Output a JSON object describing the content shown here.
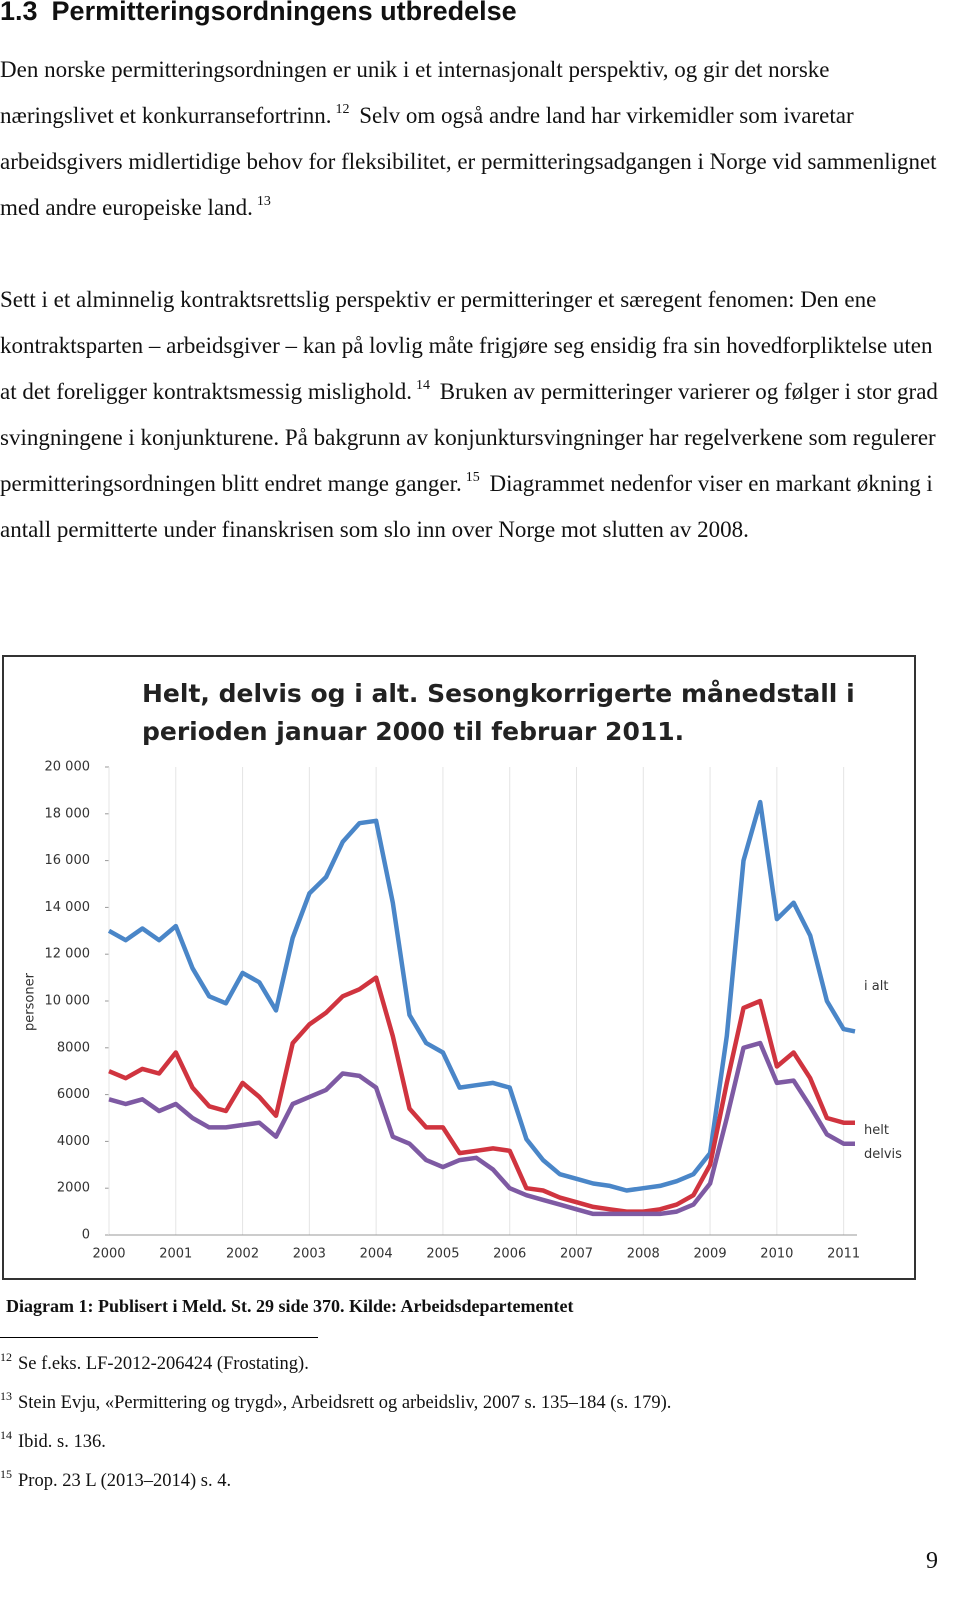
{
  "heading": {
    "number": "1.3",
    "title": "Permitteringsordningens utbredelse"
  },
  "paragraphs": [
    [
      {
        "text": "Den norske permitteringsordningen er unik i et internasjonalt perspektiv, og gir det norske næringslivet et konkurransefortrinn."
      },
      {
        "sup": "12"
      },
      {
        "text": " Selv om også andre land har virkemidler som ivaretar arbeidsgivers midlertidige behov for fleksibilitet, er permitteringsadgangen i Norge vid sammenlignet med andre europeiske land."
      },
      {
        "sup": "13"
      }
    ],
    [
      {
        "text": "Sett i et alminnelig kontraktsrettslig perspektiv er permitteringer et særegent fenomen: Den ene kontraktsparten – arbeidsgiver – kan på lovlig måte frigjøre seg ensidig fra sin hovedforpliktelse uten at det foreligger kontraktsmessig mislighold."
      },
      {
        "sup": "14"
      },
      {
        "text": " Bruken av permitteringer varierer og følger i stor grad svingningene i konjunkturene. På bakgrunn av konjunktursvingninger har regelverkene som regulerer permitteringsordningen blitt endret mange ganger."
      },
      {
        "sup": "15"
      },
      {
        "text": " Diagrammet nedenfor viser en markant økning i antall permitterte under finanskrisen som slo inn over Norge mot slutten av 2008."
      }
    ]
  ],
  "chart_data": {
    "type": "line",
    "title": "Helt, delvis og i alt. Sesongkorrigerte månedstall i perioden januar 2000 til februar 2011.",
    "y_label": "personer",
    "x": [
      2000,
      2000.25,
      2000.5,
      2000.75,
      2001,
      2001.25,
      2001.5,
      2001.75,
      2002,
      2002.25,
      2002.5,
      2002.75,
      2003,
      2003.25,
      2003.5,
      2003.75,
      2004,
      2004.25,
      2004.5,
      2004.75,
      2005,
      2005.25,
      2005.5,
      2005.75,
      2006,
      2006.25,
      2006.5,
      2006.75,
      2007,
      2007.25,
      2007.5,
      2007.75,
      2008,
      2008.25,
      2008.5,
      2008.75,
      2009,
      2009.25,
      2009.5,
      2009.75,
      2010,
      2010.25,
      2010.5,
      2010.75,
      2011,
      2011.17
    ],
    "series": [
      {
        "name": "i alt",
        "color": "#4a86c8",
        "values": [
          13000,
          12600,
          13100,
          12600,
          13200,
          11400,
          10200,
          9900,
          11200,
          10800,
          9600,
          12700,
          14600,
          15300,
          16800,
          17600,
          17700,
          14200,
          9400,
          8200,
          7800,
          6300,
          6400,
          6500,
          6300,
          4100,
          3200,
          2600,
          2400,
          2200,
          2100,
          1900,
          2000,
          2100,
          2300,
          2600,
          3500,
          8500,
          16000,
          18500,
          13500,
          14200,
          12800,
          10000,
          8800,
          8700
        ]
      },
      {
        "name": "helt",
        "color": "#d0343f",
        "values": [
          7000,
          6700,
          7100,
          6900,
          7800,
          6300,
          5500,
          5300,
          6500,
          5900,
          5100,
          8200,
          9000,
          9500,
          10200,
          10500,
          11000,
          8500,
          5400,
          4600,
          4600,
          3500,
          3600,
          3700,
          3600,
          2000,
          1900,
          1600,
          1400,
          1200,
          1100,
          1000,
          1000,
          1100,
          1300,
          1700,
          3000,
          6500,
          9700,
          10000,
          7200,
          7800,
          6700,
          5000,
          4800,
          4800
        ]
      },
      {
        "name": "delvis",
        "color": "#7e5aa3",
        "values": [
          5800,
          5600,
          5800,
          5300,
          5600,
          5000,
          4600,
          4600,
          4700,
          4800,
          4200,
          5600,
          5900,
          6200,
          6900,
          6800,
          6300,
          4200,
          3900,
          3200,
          2900,
          3200,
          3300,
          2800,
          2000,
          1700,
          1500,
          1300,
          1100,
          900,
          900,
          900,
          900,
          900,
          1000,
          1300,
          2200,
          5000,
          8000,
          8200,
          6500,
          6600,
          5500,
          4300,
          3900,
          3900
        ]
      }
    ],
    "xlim": [
      2000,
      2011.2
    ],
    "xticks": [
      2000,
      2001,
      2002,
      2003,
      2004,
      2005,
      2006,
      2007,
      2008,
      2009,
      2010,
      2011
    ],
    "ylim": [
      0,
      20000
    ],
    "yticks": [
      0,
      2000,
      4000,
      6000,
      8000,
      {
        "value": 10000,
        "label": "10 000"
      },
      {
        "value": 12000,
        "label": "12 000"
      },
      {
        "value": 14000,
        "label": "14 000"
      },
      {
        "value": 16000,
        "label": "16 000"
      },
      {
        "value": 18000,
        "label": "18 000"
      },
      {
        "value": 20000,
        "label": "20 000"
      }
    ],
    "grid": "x"
  },
  "caption": "Diagram 1: Publisert i Meld. St. 29 side 370. Kilde: Arbeidsdepartementet",
  "footnotes": [
    {
      "number": "12",
      "text": "Se f.eks. LF-2012-206424 (Frostating)."
    },
    {
      "number": "13",
      "text": "Stein Evju, «Permittering og trygd», Arbeidsrett og arbeidsliv, 2007 s. 135–184 (s. 179)."
    },
    {
      "number": "14",
      "text": "Ibid. s. 136."
    },
    {
      "number": "15",
      "text": "Prop. 23 L (2013–2014) s. 4."
    }
  ],
  "page_number": "9"
}
